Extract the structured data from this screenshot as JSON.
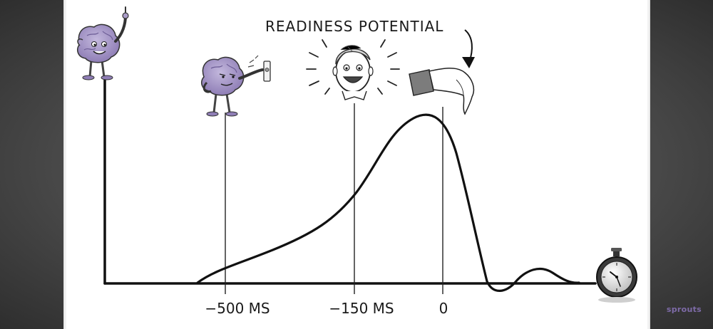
{
  "diagram": {
    "title": "READINESS POTENTIAL",
    "tick_labels": [
      "−500 MS",
      "−150 MS",
      "0"
    ],
    "icons": [
      "brain-idea-icon",
      "brain-doorbell-icon",
      "surprised-man-icon",
      "pointing-hand-icon",
      "stopwatch-icon"
    ]
  },
  "branding": {
    "watermark": "sprouts"
  },
  "colors": {
    "background": "#4b4b4b",
    "panel": "#ffffff",
    "brain": "#a99bc7",
    "ink": "#111111",
    "accent": "#7e6ba8"
  }
}
